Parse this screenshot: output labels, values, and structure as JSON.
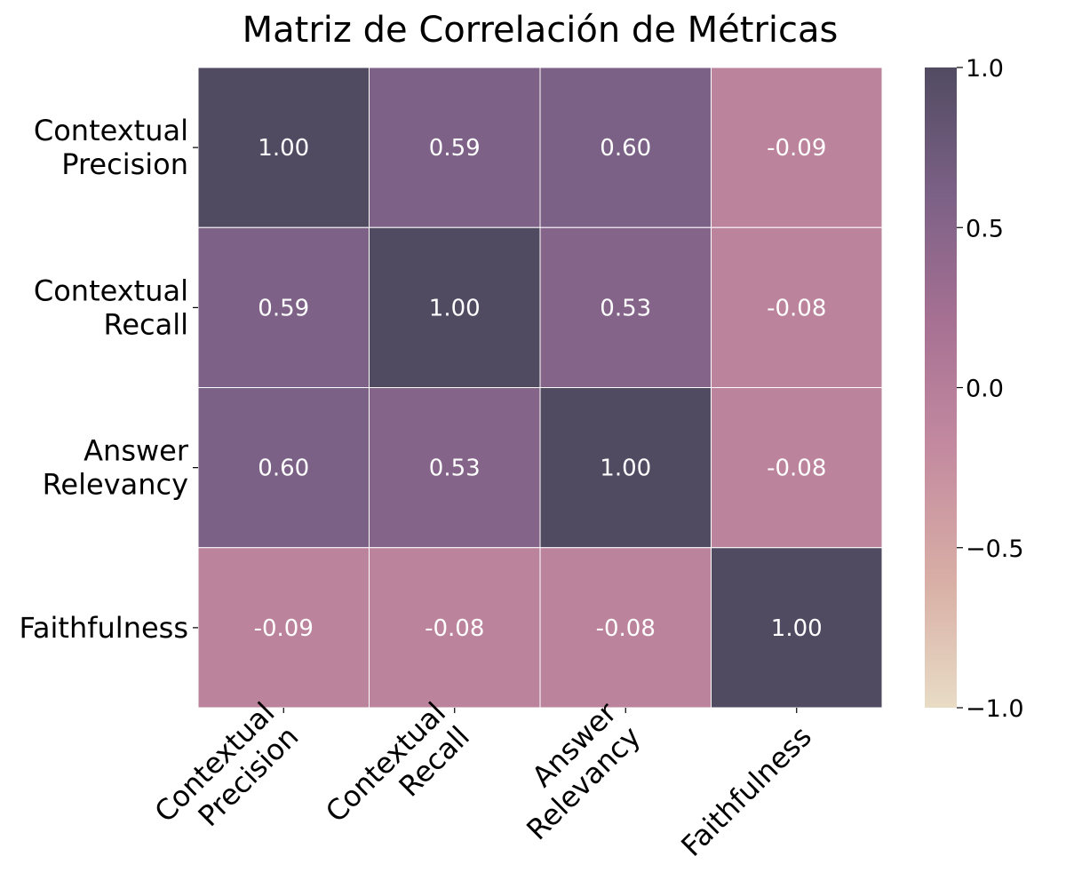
{
  "chart_data": {
    "type": "heatmap",
    "title": "Matriz de Correlación de Métricas",
    "rows": [
      [
        "Contextual",
        "Precision"
      ],
      [
        "Contextual",
        "Recall"
      ],
      [
        "Answer",
        "Relevancy"
      ],
      [
        "Faithfulness"
      ]
    ],
    "columns": [
      [
        "Contextual",
        "Precision"
      ],
      [
        "Contextual",
        "Recall"
      ],
      [
        "Answer",
        "Relevancy"
      ],
      [
        "Faithfulness"
      ]
    ],
    "values": [
      [
        1.0,
        0.59,
        0.6,
        -0.09
      ],
      [
        0.59,
        1.0,
        0.53,
        -0.08
      ],
      [
        0.6,
        0.53,
        1.0,
        -0.08
      ],
      [
        -0.09,
        -0.08,
        -0.08,
        1.0
      ]
    ],
    "cell_labels": [
      [
        "1.00",
        "0.59",
        "0.60",
        "-0.09"
      ],
      [
        "0.59",
        "1.00",
        "0.53",
        "-0.08"
      ],
      [
        "0.60",
        "0.53",
        "1.00",
        "-0.08"
      ],
      [
        "-0.09",
        "-0.08",
        "-0.08",
        "1.00"
      ]
    ],
    "color_range": [
      -1.0,
      1.0
    ],
    "colorbar": {
      "ticks": [
        1.0,
        0.5,
        0.0,
        -0.5,
        -1.0
      ],
      "tick_labels": [
        "1.0",
        "0.5",
        "0.0",
        "−0.5",
        "−1.0"
      ]
    },
    "colormap": [
      "#e8dcc5",
      "#d8aea5",
      "#c48ba0",
      "#a77193",
      "#7c6186",
      "#514b62"
    ],
    "grid_line_color": "#ffffff",
    "xtick_rotation_deg": 45
  }
}
